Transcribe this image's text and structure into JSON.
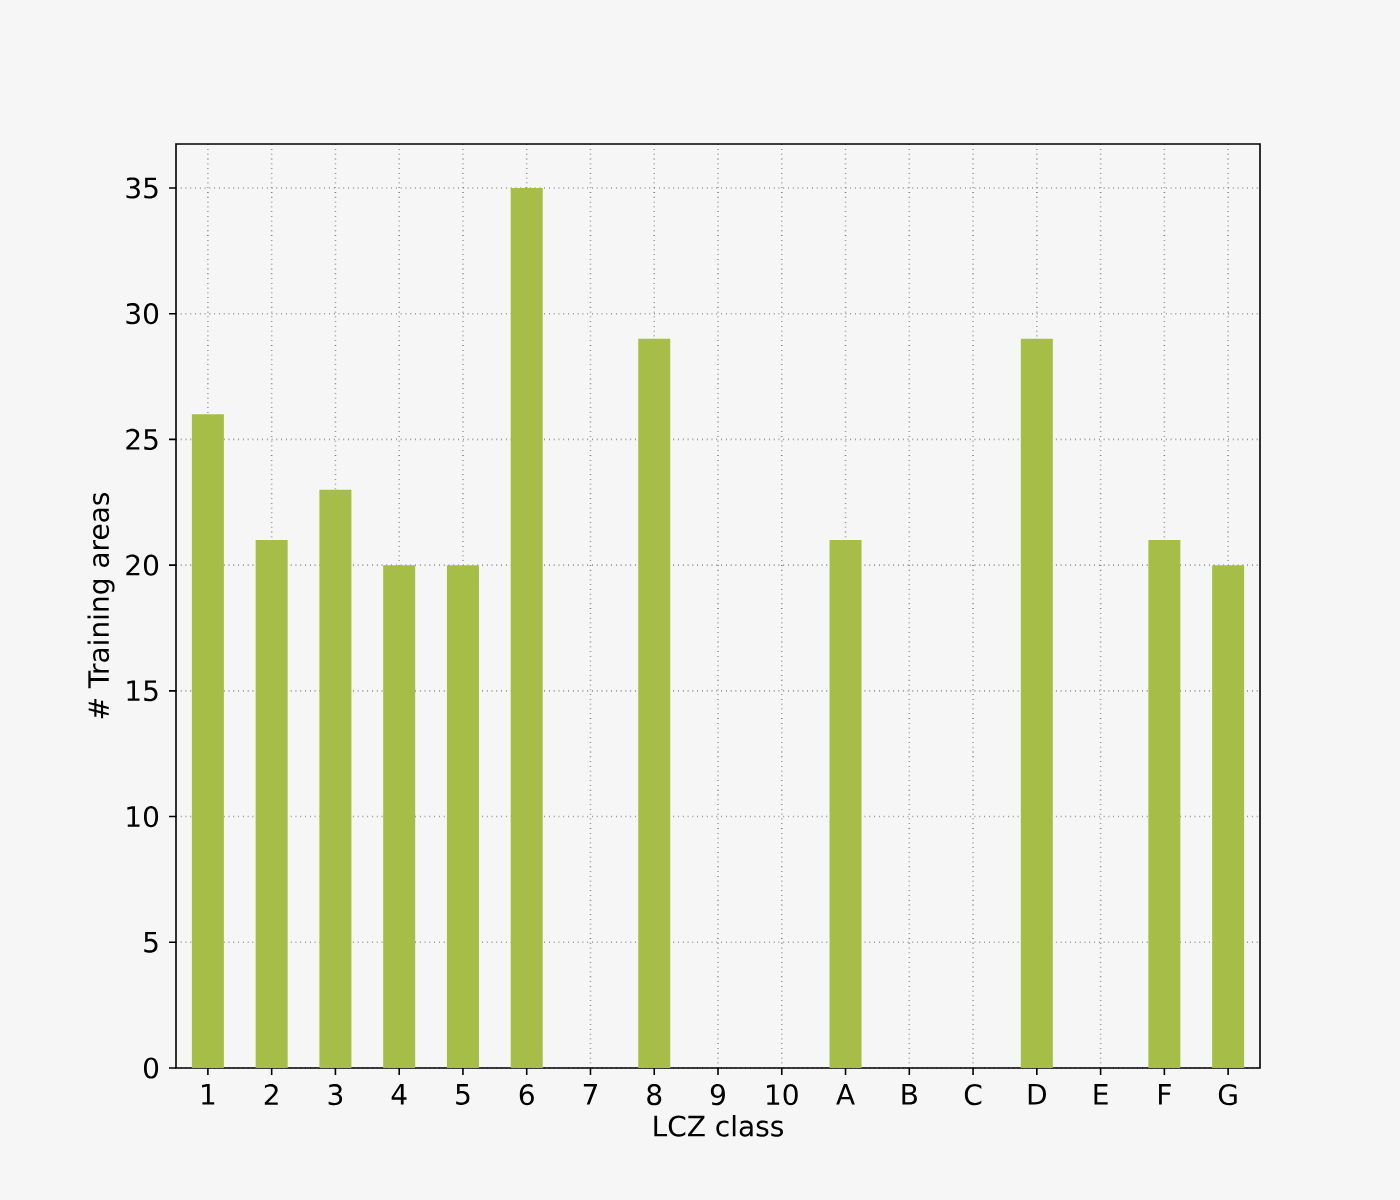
{
  "chart_data": {
    "type": "bar",
    "xlabel": "LCZ class",
    "ylabel": "# Training areas",
    "categories": [
      "1",
      "2",
      "3",
      "4",
      "5",
      "6",
      "7",
      "8",
      "9",
      "10",
      "A",
      "B",
      "C",
      "D",
      "E",
      "F",
      "G"
    ],
    "values": [
      26,
      21,
      23,
      20,
      20,
      35,
      0,
      29,
      0,
      0,
      21,
      0,
      0,
      29,
      0,
      21,
      20
    ],
    "color": "#a6bd47",
    "ylim": [
      0,
      36.75
    ],
    "yticks": [
      0,
      5,
      10,
      15,
      20,
      25,
      30,
      35
    ],
    "grid": true
  }
}
